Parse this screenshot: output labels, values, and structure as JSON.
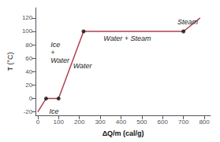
{
  "chart_data": {
    "type": "line",
    "xlabel": "ΔQ/m (cal/g)",
    "ylabel": "T (°C)",
    "series": [
      {
        "type": "line",
        "color": "#b04050",
        "x": [
          0,
          40,
          100,
          220,
          700,
          780
        ],
        "values": [
          -20,
          0,
          0,
          100,
          100,
          120
        ]
      },
      {
        "type": "scatter",
        "color": "#111111",
        "x": [
          40,
          100,
          220,
          700
        ],
        "values": [
          0,
          0,
          100,
          100
        ]
      }
    ],
    "xlim": [
      -10,
      830
    ],
    "xticks": [
      0,
      100,
      200,
      300,
      400,
      500,
      600,
      700,
      800
    ],
    "ylim": [
      -25,
      135
    ],
    "yticks": [
      -20,
      0,
      20,
      40,
      60,
      80,
      100,
      120
    ],
    "grid": false,
    "annotations": [
      {
        "text": "Ice",
        "x": 55,
        "y": -19
      },
      {
        "text": "Ice\n+\nWater",
        "x": 62,
        "y": 68
      },
      {
        "text": "Water",
        "x": 170,
        "y": 48
      },
      {
        "text": "Water + Steam",
        "x": 430,
        "y": 90
      },
      {
        "text": "Steam",
        "x": 720,
        "y": 114
      }
    ]
  }
}
